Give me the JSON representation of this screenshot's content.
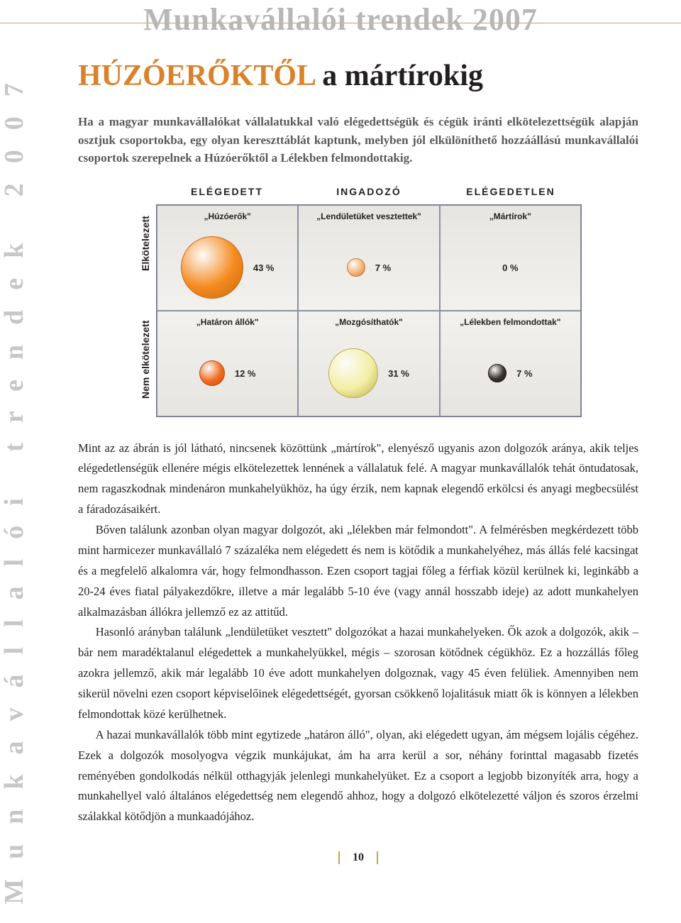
{
  "header": {
    "title": "Munkavállalói trendek 2007"
  },
  "sidebar": {
    "text": "Munkavállalói trendek 2007"
  },
  "article": {
    "title_highlight": "HÚZÓERŐKTŐL",
    "title_rest": " a mártírokig",
    "intro": "Ha a magyar munkavállalókat vállalatukkal való elégedettségük és cégük iránti elkötelezettségük alapján osztjuk csoportokba, egy olyan kereszttáblát kaptunk, melyben jól elkülöníthető hozzáállású munkavállalói csoportok szerepelnek a Húzóerőktől a Lélekben felmondottakig."
  },
  "chart": {
    "col_headers": [
      "ELÉGEDETT",
      "INGADOZÓ",
      "ELÉGEDETLEN"
    ],
    "row_headers": [
      "Elkötelezett",
      "Nem elkötelezett"
    ],
    "background_top": "#e7e5e0",
    "grid_border": "#8892a0",
    "cells": [
      [
        {
          "label": "„Húzóerők\"",
          "pct": "43 %",
          "radius": 44,
          "fill": "#f58a1f",
          "stroke": "#c56a10"
        },
        {
          "label": "„Lendületüket vesztettek\"",
          "pct": "7 %",
          "radius": 13,
          "fill": "#f6b57e",
          "stroke": "#c9793a"
        },
        {
          "label": "„Mártírok\"",
          "pct": "0 %",
          "radius": 0,
          "fill": "transparent",
          "stroke": "transparent"
        }
      ],
      [
        {
          "label": "„Határon állók\"",
          "pct": "12 %",
          "radius": 18,
          "fill": "#f26b21",
          "stroke": "#bb4d10"
        },
        {
          "label": "„Mozgósíthatók\"",
          "pct": "31 %",
          "radius": 35,
          "fill": "#f3efa4",
          "stroke": "#b8ad4e"
        },
        {
          "label": "„Lélekben felmondottak\"",
          "pct": "7 %",
          "radius": 13,
          "fill": "#3a342e",
          "stroke": "#1a1612"
        }
      ]
    ]
  },
  "body": {
    "p1": "Mint az az ábrán is jól látható, nincsenek közöttünk „mártírok\", elenyésző ugyanis azon dolgozók aránya, akik teljes elégedetlenségük ellenére mégis elkötelezettek lennének a vállalatuk felé. A magyar munkavállalók tehát öntudatosak, nem ragaszkodnak mindenáron munkahelyükhöz, ha úgy érzik, nem kapnak elegendő erkölcsi és anyagi megbecsülést a fáradozásaikért.",
    "p2": "Bőven találunk azonban olyan magyar dolgozót, aki „lélekben már felmondott\". A felmérésben megkérdezett több mint harmicezer munkavállaló 7 százaléka nem elégedett és nem is kötődik a munkahelyéhez, más állás felé kacsingat és a megfelelő alkalomra vár, hogy felmondhasson. Ezen csoport tagjai főleg a férfiak közül kerülnek ki, leginkább a 20-24 éves fiatal pályakezdőkre, illetve a már legalább 5-10 éve (vagy annál hosszabb ideje) az adott munkahelyen alkalmazásban állókra jellemző ez az attitűd.",
    "p3": "Hasonló arányban találunk „lendületüket vesztett\" dolgozókat a hazai munkahelyeken. Ők azok a dolgozók, akik – bár nem maradéktalanul elégedettek a munkahelyükkel, mégis – szorosan kötődnek cégükhöz. Ez a hozzállás főleg azokra jellemző, akik már legalább 10 éve adott munkahelyen dolgoznak, vagy 45 éven felüliek. Amennyiben nem sikerül növelni ezen csoport képviselőinek elégedettségét, gyorsan csökkenő lojalitásuk miatt ők is könnyen a lélekben felmondottak közé kerülhetnek.",
    "p4": "A hazai munkavállalók több mint egytizede „határon álló\", olyan, aki elégedett ugyan, ám mégsem lojális cégéhez. Ezek a dolgozók mosolyogva végzik munkájukat, ám ha arra kerül a sor, néhány forinttal magasabb fizetés reményében gondolkodás nélkül otthagyják jelenlegi munkahelyüket. Ez a csoport a legjobb bizonyíték arra, hogy a munkahellyel való általános elégedettség nem elegendő ahhoz, hogy a dolgozó elkötelezetté váljon és szoros érzelmi szálakkal kötődjön a munkaadójához."
  },
  "page_number": "10"
}
